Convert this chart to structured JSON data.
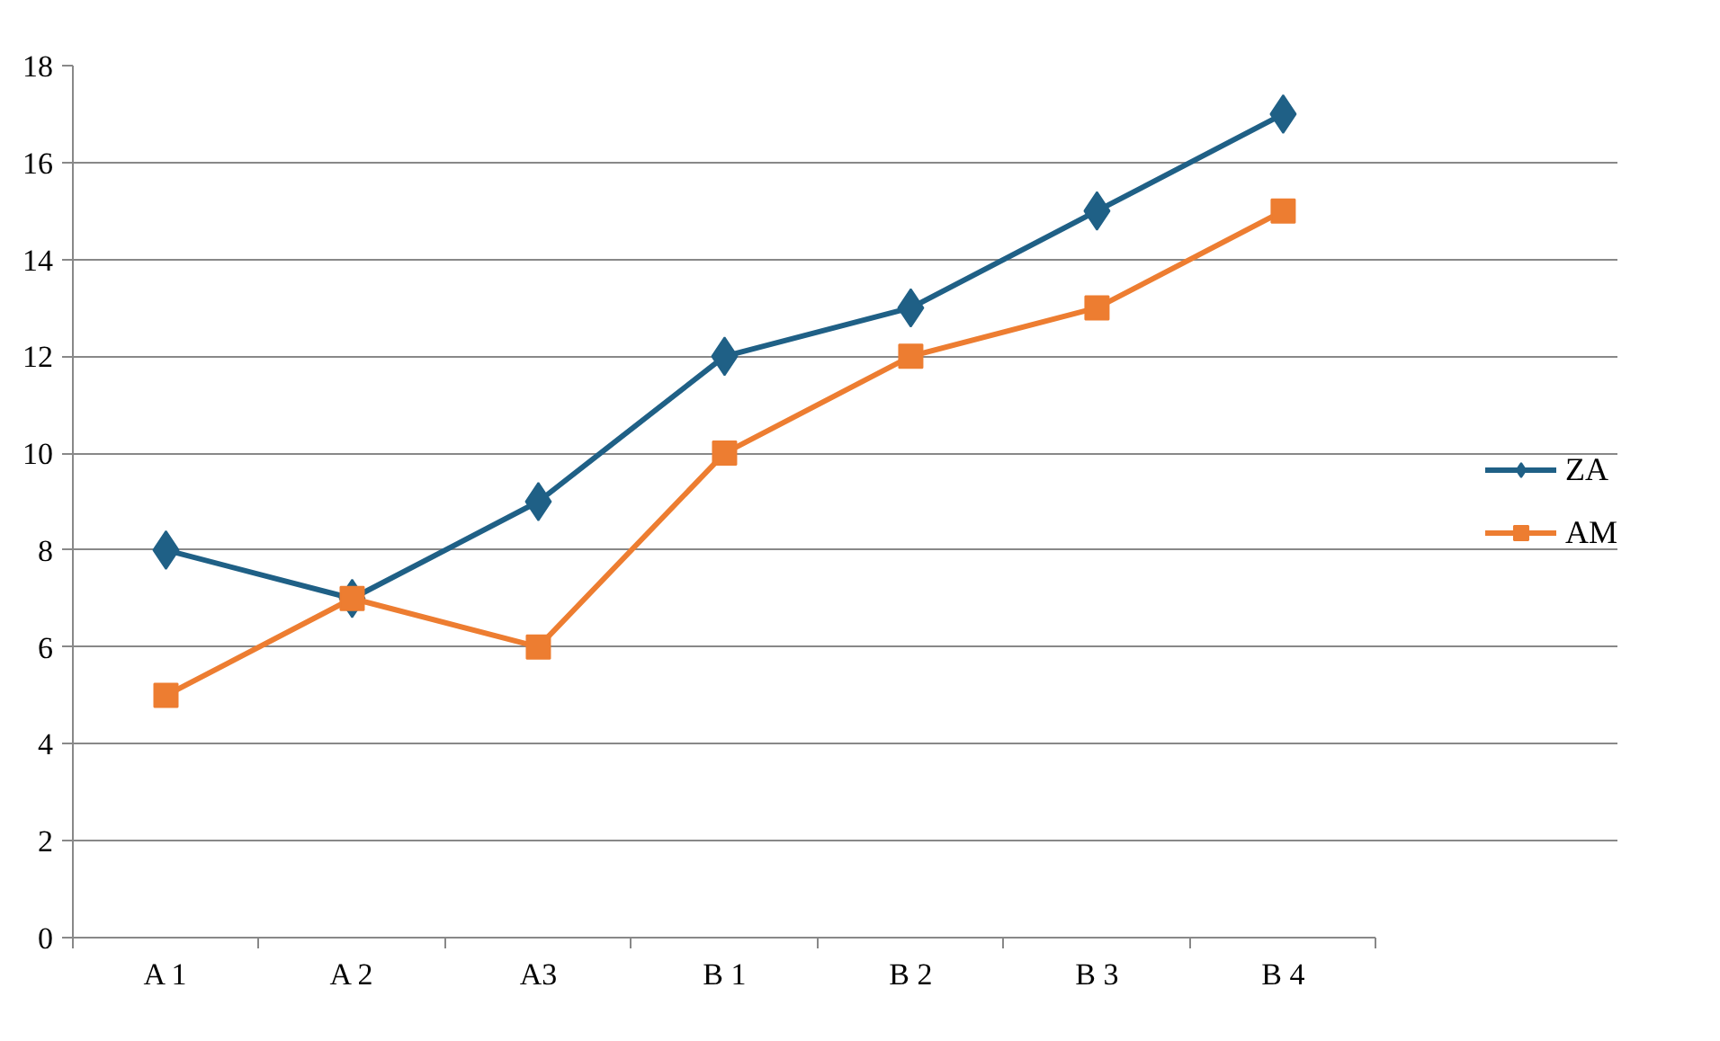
{
  "chart_data": {
    "type": "line",
    "categories": [
      "A 1",
      "A 2",
      "A3",
      "B 1",
      "B 2",
      "B 3",
      "B 4"
    ],
    "series": [
      {
        "name": "ZA",
        "color": "#1f6086",
        "marker": "diamond",
        "values": [
          8,
          7,
          9,
          12,
          13,
          15,
          17
        ]
      },
      {
        "name": "AM",
        "color": "#ed7d31",
        "marker": "square",
        "values": [
          5,
          7,
          6,
          10,
          12,
          13,
          15
        ]
      }
    ],
    "ylim": [
      0,
      18
    ],
    "yticks": [
      0,
      2,
      4,
      6,
      8,
      10,
      12,
      14,
      16,
      18
    ],
    "grid": "y",
    "legend": "right",
    "line_style": "solid"
  }
}
